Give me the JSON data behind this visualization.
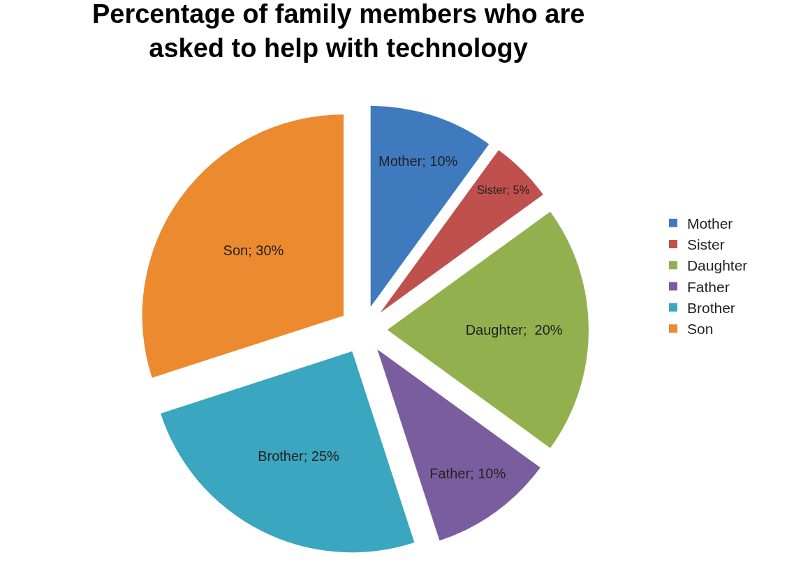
{
  "chart_data": {
    "type": "pie",
    "title": "Percentage of family members who are asked to help with technology",
    "categories": [
      "Mother",
      "Sister",
      "Daughter",
      "Father",
      "Brother",
      "Son"
    ],
    "values": [
      10,
      5,
      20,
      10,
      25,
      30
    ],
    "value_labels": [
      "Mother; 10%",
      "Sister; 5%",
      "Daughter;  20%",
      "Father; 10%",
      "Brother; 25%",
      "Son; 30%"
    ],
    "colors": [
      "#3f7abf",
      "#c0504d",
      "#93b04f",
      "#7a5d9e",
      "#3aa6bf",
      "#eb8a2f"
    ],
    "legend": "right"
  }
}
